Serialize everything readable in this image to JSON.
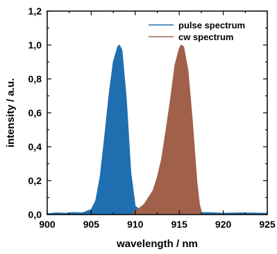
{
  "chart_data": {
    "type": "area",
    "xlabel": "wavelength  /  nm",
    "ylabel": "intensity  /  a.u.",
    "xlim": [
      900,
      925
    ],
    "ylim": [
      0,
      1.2
    ],
    "x_ticks": [
      900,
      905,
      910,
      915,
      920,
      925
    ],
    "x_tick_labels": [
      "900",
      "905",
      "910",
      "915",
      "920",
      "925"
    ],
    "y_ticks": [
      0.0,
      0.2,
      0.4,
      0.6,
      0.8,
      1.0,
      1.2
    ],
    "y_tick_labels": [
      "0,0",
      "0,2",
      "0,4",
      "0,6",
      "0,8",
      "1,0",
      "1,2"
    ],
    "legend_position": "top-right",
    "series": [
      {
        "name": "pulse spectrum",
        "color": "#1f6fb0",
        "x": [
          900.0,
          901.0,
          902.0,
          903.0,
          904.0,
          905.0,
          905.5,
          906.0,
          906.5,
          907.0,
          907.5,
          908.0,
          908.2,
          908.5,
          909.0,
          909.5,
          910.0,
          911.0,
          913.0,
          916.0,
          918.0,
          920.0,
          922.0,
          925.0
        ],
        "values": [
          0.005,
          0.01,
          0.008,
          0.012,
          0.01,
          0.03,
          0.08,
          0.22,
          0.45,
          0.7,
          0.9,
          0.99,
          1.0,
          0.97,
          0.68,
          0.25,
          0.05,
          0.01,
          0.005,
          0.008,
          0.012,
          0.008,
          0.01,
          0.008
        ]
      },
      {
        "name": "cw spectrum",
        "color": "#a0604a",
        "x": [
          909.5,
          910.0,
          911.0,
          912.0,
          912.5,
          913.0,
          913.5,
          914.0,
          914.5,
          915.0,
          915.2,
          915.5,
          916.0,
          916.5,
          917.0,
          917.3,
          917.6
        ],
        "values": [
          0.0,
          0.02,
          0.06,
          0.14,
          0.22,
          0.33,
          0.5,
          0.68,
          0.88,
          0.98,
          1.0,
          0.99,
          0.85,
          0.55,
          0.2,
          0.06,
          0.0
        ]
      }
    ]
  }
}
